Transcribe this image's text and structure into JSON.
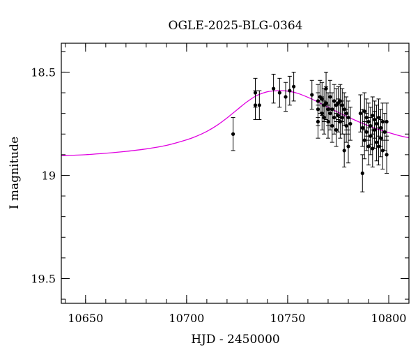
{
  "chart_data": {
    "type": "scatter",
    "title": "OGLE-2025-BLG-0364",
    "xlabel": "HJD - 2450000",
    "ylabel": "I magnitude",
    "xlim": [
      10638,
      10810
    ],
    "ylim": [
      19.62,
      18.36
    ],
    "y_inverted": true,
    "x_major_ticks": [
      10650,
      10700,
      10750,
      10800
    ],
    "x_minor_step": 10,
    "y_major_ticks": [
      18.5,
      19,
      19.5
    ],
    "y_minor_step": 0.1,
    "grid": false,
    "colors": {
      "model": "#e000e0",
      "points": "#000000"
    },
    "model_curve": {
      "name": "",
      "x": [
        10638,
        10650,
        10660,
        10670,
        10680,
        10690,
        10700,
        10705,
        10710,
        10715,
        10720,
        10725,
        10730,
        10735,
        10740,
        10745,
        10750,
        10755,
        10760,
        10765,
        10770,
        10775,
        10780,
        10785,
        10790,
        10795,
        10800,
        10805,
        10810
      ],
      "y": [
        18.905,
        18.9,
        18.893,
        18.884,
        18.872,
        18.855,
        18.828,
        18.81,
        18.787,
        18.758,
        18.722,
        18.682,
        18.643,
        18.612,
        18.595,
        18.59,
        18.592,
        18.603,
        18.622,
        18.645,
        18.67,
        18.695,
        18.718,
        18.74,
        18.76,
        18.778,
        18.793,
        18.807,
        18.818
      ]
    },
    "series": [
      {
        "name": "",
        "x": [
          10723,
          10734,
          10734,
          10736,
          10743,
          10746,
          10749,
          10751,
          10753,
          10762,
          10765,
          10765,
          10765,
          10766,
          10767,
          10767,
          10768,
          10768,
          10769,
          10769,
          10770,
          10770,
          10771,
          10771,
          10772,
          10772,
          10773,
          10773,
          10774,
          10774,
          10775,
          10775,
          10776,
          10776,
          10777,
          10777,
          10778,
          10778,
          10779,
          10779,
          10780,
          10780,
          10781,
          10786,
          10787,
          10787,
          10788,
          10788,
          10789,
          10789,
          10790,
          10790,
          10791,
          10791,
          10792,
          10792,
          10793,
          10793,
          10794,
          10794,
          10795,
          10795,
          10796,
          10796,
          10797,
          10797,
          10798,
          10799,
          10799
        ],
        "y": [
          18.8,
          18.6,
          18.66,
          18.66,
          18.58,
          18.6,
          18.62,
          18.59,
          18.57,
          18.61,
          18.64,
          18.68,
          18.74,
          18.62,
          18.63,
          18.7,
          18.66,
          18.72,
          18.58,
          18.65,
          18.68,
          18.74,
          18.62,
          18.7,
          18.68,
          18.76,
          18.64,
          18.72,
          18.66,
          18.78,
          18.65,
          18.71,
          18.64,
          18.74,
          18.66,
          18.72,
          18.68,
          18.88,
          18.7,
          18.76,
          18.72,
          18.86,
          18.75,
          18.7,
          18.99,
          18.77,
          18.69,
          18.83,
          18.72,
          18.79,
          18.74,
          18.86,
          18.76,
          18.81,
          18.71,
          18.87,
          18.73,
          18.78,
          18.75,
          18.84,
          18.72,
          18.86,
          18.77,
          18.82,
          18.74,
          18.88,
          18.79,
          18.74,
          18.9
        ],
        "err": [
          0.08,
          0.07,
          0.07,
          0.07,
          0.07,
          0.07,
          0.07,
          0.07,
          0.07,
          0.07,
          0.08,
          0.08,
          0.08,
          0.08,
          0.08,
          0.08,
          0.08,
          0.08,
          0.08,
          0.08,
          0.08,
          0.08,
          0.08,
          0.08,
          0.08,
          0.08,
          0.08,
          0.08,
          0.08,
          0.08,
          0.08,
          0.08,
          0.08,
          0.08,
          0.08,
          0.08,
          0.08,
          0.08,
          0.08,
          0.08,
          0.08,
          0.08,
          0.08,
          0.09,
          0.09,
          0.09,
          0.09,
          0.09,
          0.09,
          0.09,
          0.09,
          0.09,
          0.09,
          0.09,
          0.09,
          0.09,
          0.09,
          0.09,
          0.09,
          0.09,
          0.09,
          0.09,
          0.09,
          0.09,
          0.09,
          0.09,
          0.09,
          0.09,
          0.09
        ]
      }
    ]
  }
}
